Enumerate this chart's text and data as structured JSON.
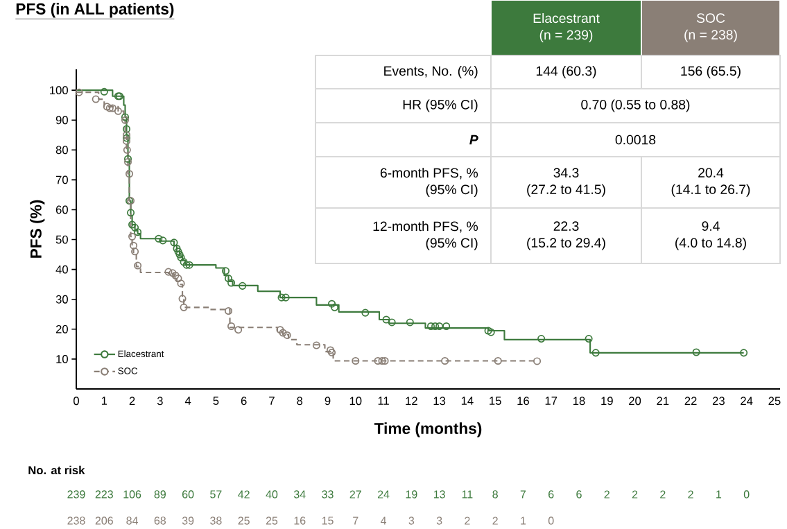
{
  "chart_data": {
    "type": "step",
    "title": "PFS (in ALL patients)",
    "xlabel": "Time (months)",
    "ylabel": "PFS (%)",
    "xlim": [
      0,
      25.2
    ],
    "ylim": [
      0,
      107
    ],
    "xticks": [
      0,
      1,
      2,
      3,
      4,
      5,
      6,
      7,
      8,
      9,
      10,
      11,
      12,
      13,
      14,
      15,
      16,
      17,
      18,
      19,
      20,
      21,
      22,
      23,
      24,
      25
    ],
    "yticks": [
      10,
      20,
      30,
      40,
      50,
      60,
      70,
      80,
      90,
      100
    ],
    "legend": "bottom left",
    "series": [
      {
        "name": "Elacestrant",
        "color": "#3d7a3d",
        "line_style": "solid",
        "x": [
          0,
          1.3,
          1.7,
          1.75,
          1.8,
          1.85,
          1.9,
          1.95,
          2.0,
          2.1,
          2.2,
          2.3,
          3.0,
          3.5,
          3.6,
          3.7,
          3.8,
          3.9,
          5.0,
          5.3,
          5.45,
          5.6,
          6.5,
          7.3,
          8.6,
          9.4,
          10.85,
          11.2,
          12.5,
          14.75,
          15.33,
          18.4,
          23.9
        ],
        "values": [
          100,
          98,
          95,
          91,
          85,
          77,
          63,
          58,
          55,
          53,
          52,
          50.3,
          49.5,
          48,
          46,
          44.5,
          43,
          41.5,
          40.5,
          38,
          36,
          34.6,
          32.7,
          30.6,
          28.1,
          25.8,
          23.2,
          22,
          20.4,
          19.5,
          16.5,
          12.1,
          12.1
        ]
      },
      {
        "name": "SOC",
        "color": "#8a7f76",
        "line_style": "dashed",
        "x": [
          0,
          0.8,
          1.0,
          1.5,
          1.7,
          1.75,
          1.8,
          1.85,
          1.9,
          1.95,
          2.0,
          2.05,
          2.15,
          2.3,
          3.3,
          3.5,
          3.6,
          3.7,
          3.8,
          3.85,
          4.8,
          5.5,
          7.2,
          7.4,
          7.6,
          7.9,
          8.9,
          9.2,
          16.5
        ],
        "values": [
          99.3,
          97,
          94.5,
          93,
          90,
          85,
          80,
          72,
          63,
          51,
          48,
          45,
          41,
          39,
          38.5,
          37.5,
          36,
          35,
          30,
          27.3,
          26.6,
          20.6,
          19.2,
          18.2,
          16.5,
          14.8,
          12.5,
          9.4,
          9.4
        ]
      },
      {
        "type": "scatter",
        "color": "#3d7a3d",
        "marker": "circle",
        "x": [
          1.0,
          1.5,
          1.55,
          1.75,
          1.8,
          1.8,
          1.85,
          1.9,
          1.95,
          2.0,
          2.1,
          2.2,
          2.95,
          3.1,
          3.5,
          3.6,
          3.65,
          3.7,
          3.75,
          3.85,
          3.95,
          4.05,
          5.35,
          5.45,
          5.55,
          5.95,
          7.35,
          7.5,
          9.15,
          9.25,
          10.35,
          11.1,
          11.3,
          11.95,
          12.7,
          12.85,
          13.0,
          13.25,
          14.75,
          14.85,
          16.65,
          18.35,
          18.6,
          22.2,
          23.9
        ],
        "values": [
          99.5,
          98,
          98,
          91,
          87,
          84,
          77,
          63,
          59,
          55,
          54,
          52.5,
          50.3,
          49.7,
          49,
          47,
          46,
          45,
          44,
          42.5,
          41.5,
          41.5,
          39.5,
          37,
          35.5,
          34.5,
          30.6,
          30.6,
          28.5,
          27.3,
          25.5,
          23.2,
          22.3,
          22.3,
          21,
          21,
          21,
          21,
          19.5,
          19,
          16.8,
          16.8,
          12.1,
          12.3,
          12.1
        ]
      },
      {
        "type": "scatter",
        "color": "#8a7f76",
        "marker": "circle",
        "x": [
          0.1,
          0.7,
          1.1,
          1.2,
          1.3,
          1.5,
          1.75,
          1.8,
          1.8,
          1.82,
          1.85,
          1.9,
          1.95,
          2.0,
          2.05,
          2.1,
          2.2,
          3.3,
          3.45,
          3.55,
          3.65,
          3.75,
          3.8,
          3.85,
          5.45,
          5.55,
          5.8,
          7.3,
          7.4,
          7.55,
          8.6,
          9.1,
          9.15,
          10.0,
          10.8,
          10.95,
          11.05,
          13.2,
          15.1,
          16.5
        ],
        "values": [
          99.3,
          97,
          94.5,
          94,
          94,
          93,
          90,
          85,
          83,
          80,
          76,
          72,
          63,
          51,
          48,
          46,
          41.3,
          39.2,
          38.8,
          38,
          37,
          35.3,
          30.2,
          27.3,
          26.1,
          21,
          19.8,
          19.8,
          18.8,
          18,
          14.6,
          13,
          12.2,
          9.4,
          9.4,
          9.4,
          9.4,
          9.4,
          9.4,
          9.3
        ]
      }
    ],
    "annotations": [
      "Elacestrant",
      "(n = 239)",
      "SOC",
      "(n = 238)",
      "Events, No. (%)",
      "144 (60.3)",
      "156 (65.5)",
      "HR (95% CI)",
      "0.70 (0.55 to 0.88)",
      "P",
      "0.0018",
      "6-month PFS, %",
      "(95% CI)",
      "34.3",
      "(27.2 to 41.5)",
      "20.4",
      "(14.1 to 26.7)",
      "12-month PFS, %",
      "(95% CI)",
      "22.3",
      "(15.2 to 29.4)",
      "9.4",
      "(4.0 to 14.8)",
      "No. at risk",
      "239",
      "223",
      "106",
      "89",
      "60",
      "57",
      "42",
      "40",
      "34",
      "33",
      "27",
      "24",
      "19",
      "13",
      "11",
      "8",
      "7",
      "6",
      "6",
      "2",
      "2",
      "2",
      "2",
      "1",
      "0",
      "238",
      "206",
      "84",
      "68",
      "39",
      "38",
      "25",
      "25",
      "16",
      "15",
      "7",
      "4",
      "3",
      "3",
      "2",
      "2",
      "1",
      "0"
    ]
  }
}
